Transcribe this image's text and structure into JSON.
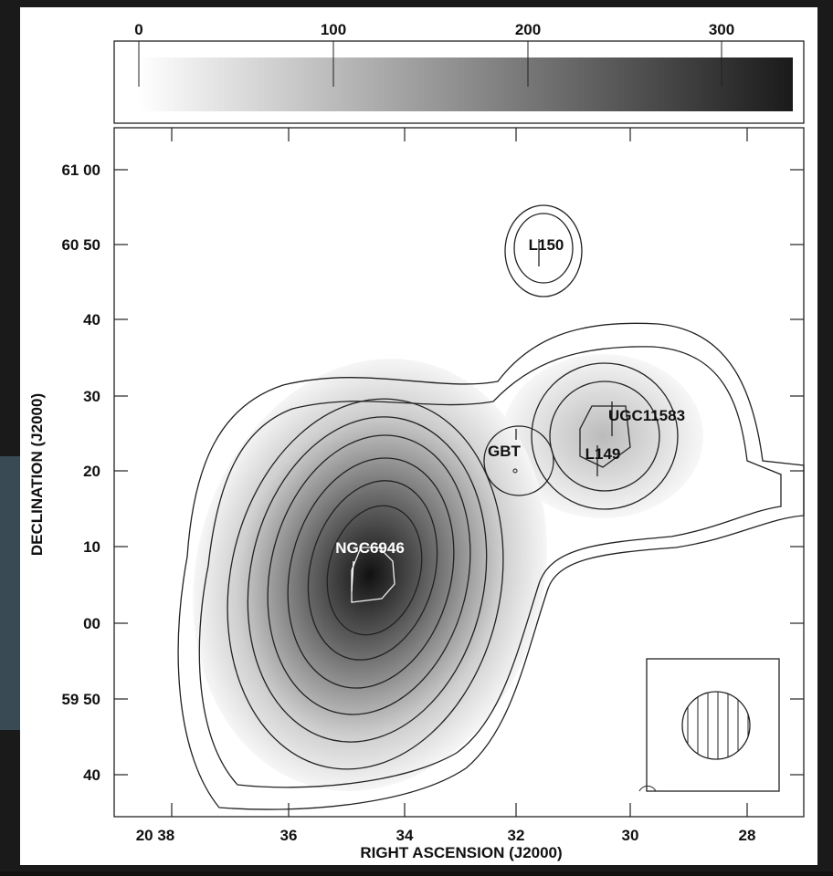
{
  "figure": {
    "colorbar_ticks": [
      "0",
      "100",
      "200",
      "300"
    ],
    "y_ticks": [
      "61 00",
      "60 50",
      "40",
      "30",
      "20",
      "10",
      "00",
      "59 50",
      "40"
    ],
    "x_ticks": [
      "20 38",
      "36",
      "34",
      "32",
      "30",
      "28"
    ],
    "x_label": "RIGHT ASCENSION (J2000)",
    "y_label": "DECLINATION (J2000)",
    "sources": {
      "l150": "L150",
      "ugc": "UGC11583",
      "gbt": "GBT",
      "l149": "L149",
      "ngc": "NGC6946"
    }
  }
}
